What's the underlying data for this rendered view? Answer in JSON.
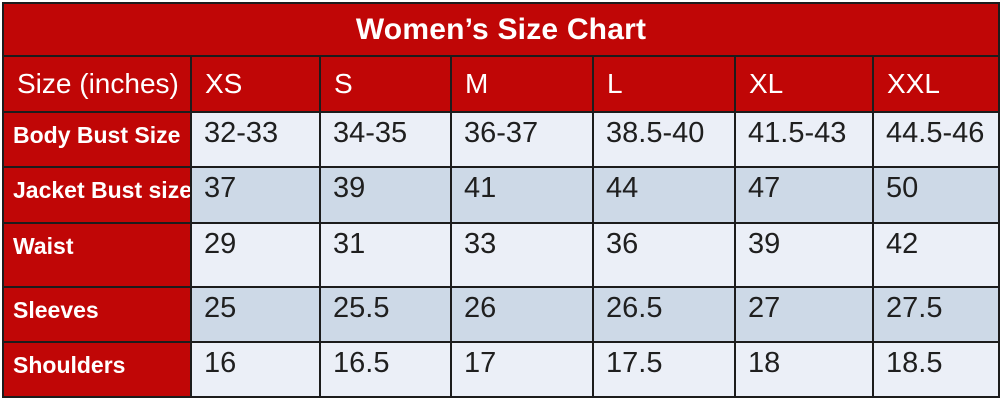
{
  "colors": {
    "header_red": "#c00606",
    "row_light": "#ebeff7",
    "row_dark": "#cdd9e7",
    "border": "#1c1c1c",
    "title_text": "#ffffff",
    "data_text": "#1f1f1f"
  },
  "chart_data": {
    "type": "table",
    "title": "Women’s Size Chart",
    "columns": [
      "Size (inches)",
      "XS",
      "S",
      "M",
      "L",
      "XL",
      "XXL"
    ],
    "rows": [
      {
        "label": "Body Bust Size",
        "values": [
          "32-33",
          "34-35",
          "36-37",
          "38.5-40",
          "41.5-43",
          "44.5-46"
        ]
      },
      {
        "label": "Jacket Bust size",
        "values": [
          "37",
          "39",
          "41",
          "44",
          "47",
          "50"
        ]
      },
      {
        "label": "Waist",
        "values": [
          "29",
          "31",
          "33",
          "36",
          "39",
          "42"
        ]
      },
      {
        "label": "Sleeves",
        "values": [
          "25",
          "25.5",
          "26",
          "26.5",
          "27",
          "27.5"
        ]
      },
      {
        "label": "Shoulders",
        "values": [
          "16",
          "16.5",
          "17",
          "17.5",
          "18",
          "18.5"
        ]
      }
    ]
  }
}
